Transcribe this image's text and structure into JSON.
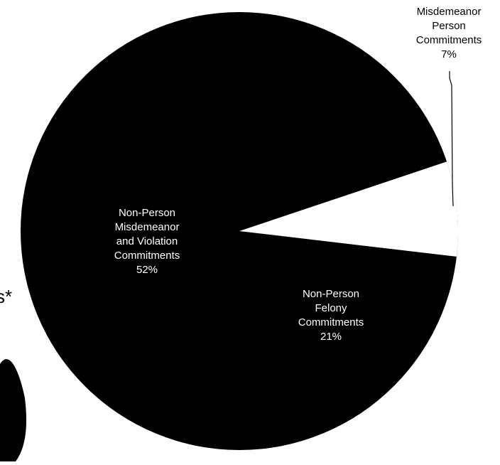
{
  "chart_data": {
    "type": "pie",
    "title": "",
    "slices": [
      {
        "label_lines": [
          "Misdemeanor",
          "Person",
          "Commitments"
        ],
        "percent_label": "7%",
        "value": 7,
        "color": "#ffffff",
        "label_color": "#000000"
      },
      {
        "label_lines": [
          "Non-Person",
          "Felony",
          "Commitments"
        ],
        "percent_label": "21%",
        "value": 21,
        "color": "#000000",
        "label_color": "#ffffff"
      },
      {
        "label_lines": [
          "Non-Person",
          "Misdemeanor",
          "and Violation",
          "Commitments"
        ],
        "percent_label": "52%",
        "value": 52,
        "color": "#000000",
        "label_color": "#ffffff"
      }
    ],
    "partial_label_text": "s*"
  }
}
